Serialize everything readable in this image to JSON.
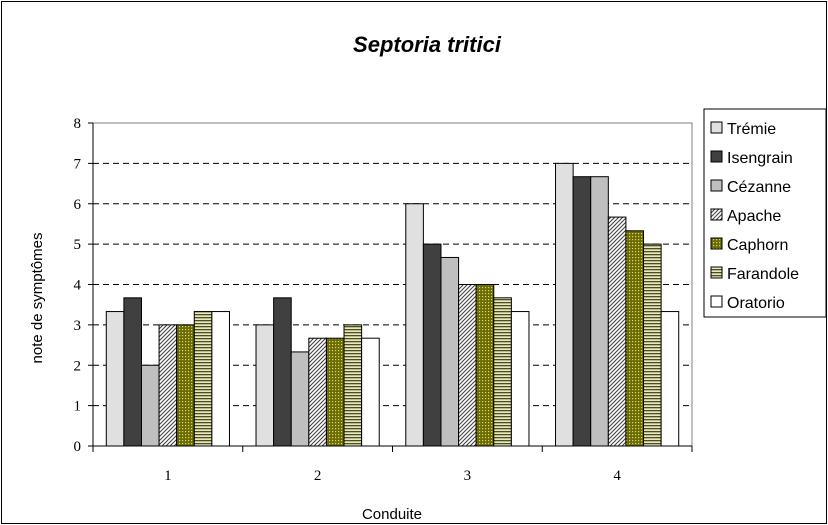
{
  "chart_data": {
    "type": "bar",
    "title": "Septoria tritici",
    "xlabel": "Conduite",
    "ylabel": "note de symptômes",
    "categories": [
      "1",
      "2",
      "3",
      "4"
    ],
    "ylim": [
      0,
      8
    ],
    "yticks": [
      "0",
      "1",
      "2",
      "3",
      "4",
      "5",
      "6",
      "7",
      "8"
    ],
    "grid": "horizontal dashed",
    "legend_position": "right",
    "series": [
      {
        "name": "Trémie",
        "values": [
          3.33,
          3.0,
          6.0,
          7.0
        ],
        "color": "#e0e0e0",
        "pattern": "solid-light"
      },
      {
        "name": "Isengrain",
        "values": [
          3.67,
          3.67,
          5.0,
          6.67
        ],
        "color": "#404040",
        "pattern": "solid-dark"
      },
      {
        "name": "Cézanne",
        "values": [
          2.0,
          2.33,
          4.67,
          6.67
        ],
        "color": "#bfbfbf",
        "pattern": "solid-grey"
      },
      {
        "name": "Apache",
        "values": [
          3.0,
          2.67,
          4.0,
          5.67
        ],
        "color": "#808080",
        "pattern": "diagonal-hatch"
      },
      {
        "name": "Caphorn",
        "values": [
          3.0,
          2.67,
          4.0,
          5.33
        ],
        "color": "#555500",
        "pattern": "dotted-olive"
      },
      {
        "name": "Farandole",
        "values": [
          3.33,
          3.0,
          3.67,
          5.0
        ],
        "color": "#666633",
        "pattern": "horizontal-stripes"
      },
      {
        "name": "Oratorio",
        "values": [
          3.33,
          2.67,
          3.33,
          3.33
        ],
        "color": "#ffffff",
        "pattern": "solid-white"
      }
    ]
  }
}
